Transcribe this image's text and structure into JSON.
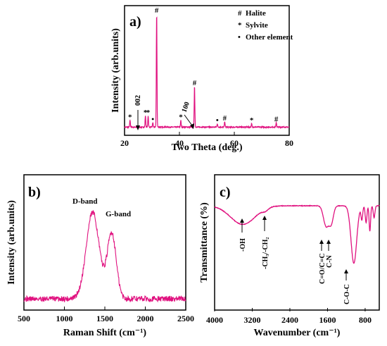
{
  "chart_data": [
    {
      "panel": "a)",
      "type": "line",
      "xlabel": "Two Theta (deg.)",
      "ylabel": "Intensity (arb.units)",
      "xlim": [
        20,
        80
      ],
      "xticks": [
        "20",
        "40",
        "60",
        "80"
      ],
      "ylim": [
        0,
        100
      ],
      "series_color": "#e0117f",
      "peaks": [
        {
          "x": 22.0,
          "y": 6,
          "marker": "*"
        },
        {
          "x": 27.6,
          "y": 10,
          "marker": "*"
        },
        {
          "x": 28.6,
          "y": 10,
          "marker": "*"
        },
        {
          "x": 30.3,
          "y": 4,
          "marker": "•"
        },
        {
          "x": 31.7,
          "y": 100,
          "marker": "#"
        },
        {
          "x": 40.5,
          "y": 6,
          "marker": "*"
        },
        {
          "x": 45.5,
          "y": 36,
          "marker": "#"
        },
        {
          "x": 53.8,
          "y": 3,
          "marker": "•"
        },
        {
          "x": 56.5,
          "y": 5,
          "marker": "#"
        },
        {
          "x": 66.3,
          "y": 3,
          "marker": "*"
        },
        {
          "x": 75.3,
          "y": 4,
          "marker": "#"
        }
      ],
      "annotations": [
        {
          "text": "002",
          "x": 24.3
        },
        {
          "text": "100",
          "x": 45.0
        }
      ],
      "legend": [
        {
          "symbol": "#",
          "label": "Halite"
        },
        {
          "symbol": "*",
          "label": "Sylvite"
        },
        {
          "symbol": "•",
          "label": "Other element"
        }
      ],
      "legend_placement": "top-right"
    },
    {
      "panel": "b)",
      "type": "line",
      "xlabel": "Raman Shift (cm⁻¹)",
      "ylabel": "Intensity (arb.units)",
      "xlim": [
        500,
        2500
      ],
      "xticks": [
        "500",
        "1000",
        "1500",
        "2000",
        "2500"
      ],
      "ylim": [
        0,
        100
      ],
      "series_color": "#e0117f",
      "bands": [
        {
          "label": "D-band",
          "x": 1350,
          "y": 92
        },
        {
          "label": "G-band",
          "x": 1580,
          "y": 78
        }
      ]
    },
    {
      "panel": "c)",
      "type": "line",
      "xlabel": "Wavenumber (cm⁻¹)",
      "ylabel": "Transmittance (%)",
      "xlim": [
        4000,
        500
      ],
      "xticks": [
        "4000",
        "3200",
        "2400",
        "1600",
        "800"
      ],
      "ylim": [
        0,
        100
      ],
      "series_color": "#e0117f",
      "assignments": [
        {
          "label": "-OH",
          "x": 3400
        },
        {
          "label": "-CH₃/-CH₂",
          "x": 2920
        },
        {
          "label": "C=O/C=C",
          "x": 1630
        },
        {
          "label": "C-N",
          "x": 1520
        },
        {
          "label": "C-O-C",
          "x": 1040
        }
      ]
    }
  ]
}
